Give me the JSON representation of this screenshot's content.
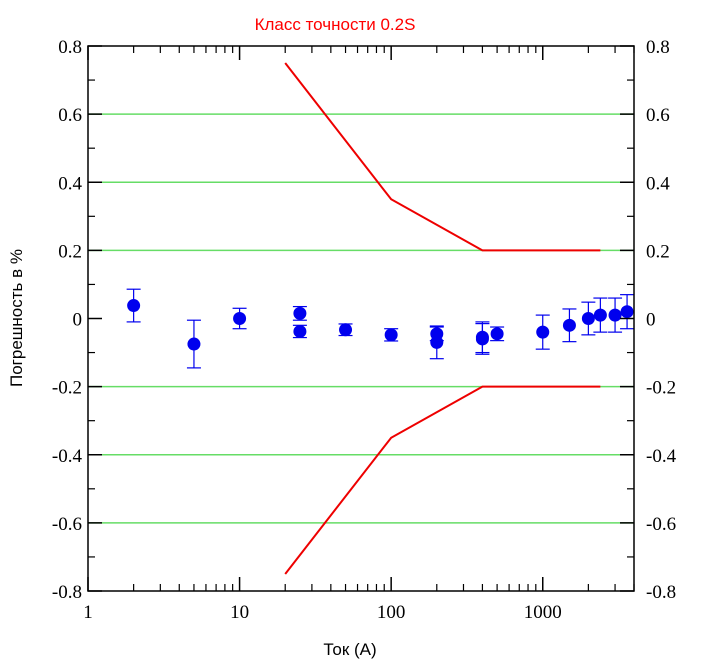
{
  "chart_data": {
    "type": "scatter",
    "title": "Класс точности 0.2S",
    "xlabel": "Ток (А)",
    "ylabel": "Погрешность в %",
    "x_scale": "log",
    "xlim": [
      1,
      4000
    ],
    "ylim": [
      -0.8,
      0.8
    ],
    "x_ticks": [
      1,
      10,
      100,
      1000
    ],
    "x_tick_labels": [
      "1",
      "10",
      "100",
      "1000"
    ],
    "y_ticks": [
      -0.8,
      -0.6,
      -0.4,
      -0.2,
      0,
      0.2,
      0.4,
      0.6,
      0.8
    ],
    "y_tick_labels": [
      "-0.8",
      "-0.6",
      "-0.4",
      "-0.2",
      "0",
      "0.2",
      "0.4",
      "0.6",
      "0.8"
    ],
    "grid": "horizontal",
    "grid_color": "#66dd66",
    "points_color": "#0000ee",
    "limit_color": "#ee0000",
    "series": [
      {
        "type": "scatter",
        "points": [
          {
            "x": 2,
            "y": 0.038,
            "err": 0.048
          },
          {
            "x": 5,
            "y": -0.075,
            "err": 0.07
          },
          {
            "x": 10,
            "y": 0.0,
            "err": 0.03
          },
          {
            "x": 25,
            "y": 0.015,
            "err": 0.02
          },
          {
            "x": 25,
            "y": -0.038,
            "err": 0.018
          },
          {
            "x": 50,
            "y": -0.033,
            "err": 0.017
          },
          {
            "x": 100,
            "y": -0.048,
            "err": 0.018
          },
          {
            "x": 200,
            "y": -0.045,
            "err": 0.02
          },
          {
            "x": 200,
            "y": -0.07,
            "err": 0.048
          },
          {
            "x": 400,
            "y": -0.055,
            "err": 0.045
          },
          {
            "x": 400,
            "y": -0.06,
            "err": 0.045
          },
          {
            "x": 500,
            "y": -0.045,
            "err": 0.02
          },
          {
            "x": 1000,
            "y": -0.04,
            "err": 0.05
          },
          {
            "x": 1500,
            "y": -0.02,
            "err": 0.048
          },
          {
            "x": 2000,
            "y": 0.0,
            "err": 0.048
          },
          {
            "x": 2400,
            "y": 0.01,
            "err": 0.05
          },
          {
            "x": 3000,
            "y": 0.01,
            "err": 0.05
          },
          {
            "x": 3600,
            "y": 0.02,
            "err": 0.05
          }
        ]
      },
      {
        "type": "line",
        "x": [
          20,
          100,
          400,
          2400
        ],
        "y": [
          0.75,
          0.35,
          0.2,
          0.2
        ]
      },
      {
        "type": "line",
        "x": [
          20,
          100,
          400,
          2400
        ],
        "y": [
          -0.75,
          -0.35,
          -0.2,
          -0.2
        ]
      }
    ]
  }
}
